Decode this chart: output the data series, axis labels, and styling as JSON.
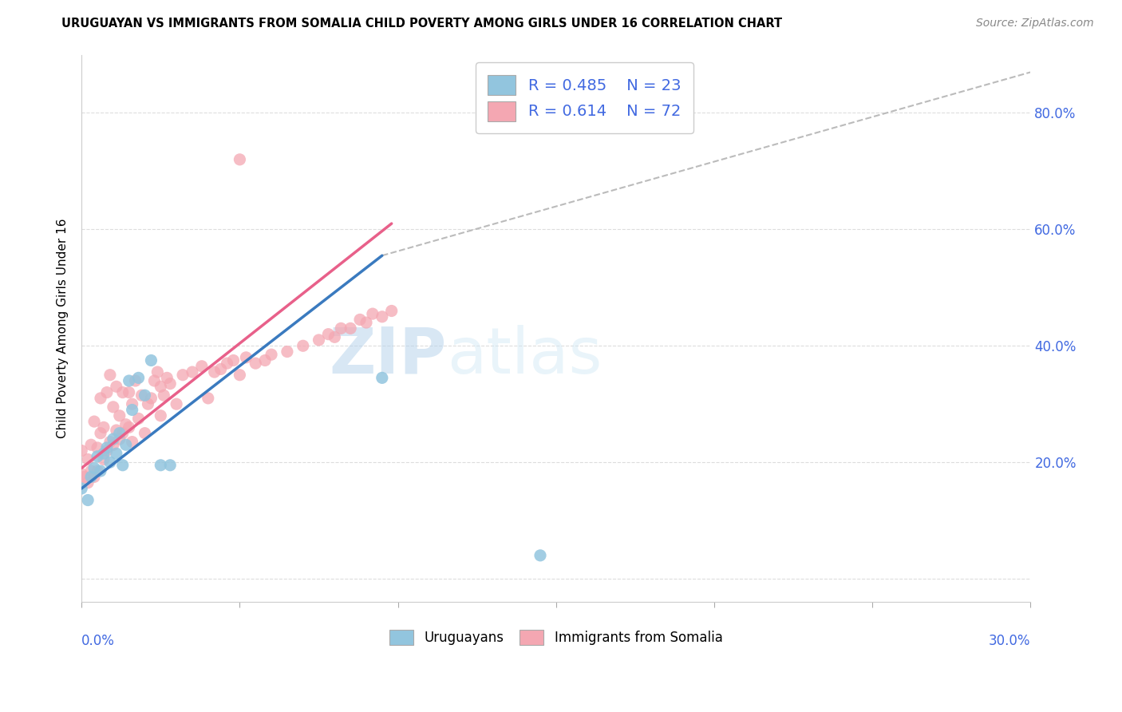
{
  "title": "URUGUAYAN VS IMMIGRANTS FROM SOMALIA CHILD POVERTY AMONG GIRLS UNDER 16 CORRELATION CHART",
  "source": "Source: ZipAtlas.com",
  "ylabel": "Child Poverty Among Girls Under 16",
  "ylabel_right_ticks": [
    "20.0%",
    "40.0%",
    "60.0%",
    "80.0%"
  ],
  "ylabel_right_vals": [
    0.2,
    0.4,
    0.6,
    0.8
  ],
  "blue_color": "#92c5de",
  "pink_color": "#f4a7b2",
  "trend_blue": "#3a7abf",
  "trend_pink": "#e8608a",
  "trend_gray": "#bbbbbb",
  "watermark_text": "ZIPatlas",
  "xmin": 0.0,
  "xmax": 0.3,
  "ymin": -0.04,
  "ymax": 0.9,
  "uruguayan_x": [
    0.0,
    0.002,
    0.003,
    0.004,
    0.005,
    0.006,
    0.007,
    0.008,
    0.009,
    0.01,
    0.011,
    0.012,
    0.013,
    0.014,
    0.015,
    0.016,
    0.018,
    0.02,
    0.022,
    0.025,
    0.028,
    0.095,
    0.145
  ],
  "uruguayan_y": [
    0.155,
    0.135,
    0.175,
    0.19,
    0.21,
    0.185,
    0.215,
    0.225,
    0.2,
    0.24,
    0.215,
    0.25,
    0.195,
    0.23,
    0.34,
    0.29,
    0.345,
    0.315,
    0.375,
    0.195,
    0.195,
    0.345,
    0.04
  ],
  "somalia_x": [
    0.0,
    0.0,
    0.001,
    0.002,
    0.002,
    0.003,
    0.003,
    0.004,
    0.004,
    0.005,
    0.005,
    0.006,
    0.006,
    0.007,
    0.007,
    0.008,
    0.008,
    0.009,
    0.009,
    0.01,
    0.01,
    0.011,
    0.011,
    0.012,
    0.012,
    0.013,
    0.013,
    0.014,
    0.015,
    0.015,
    0.016,
    0.016,
    0.017,
    0.018,
    0.019,
    0.02,
    0.021,
    0.022,
    0.023,
    0.024,
    0.025,
    0.025,
    0.026,
    0.027,
    0.028,
    0.03,
    0.032,
    0.035,
    0.038,
    0.04,
    0.042,
    0.044,
    0.046,
    0.048,
    0.05,
    0.052,
    0.055,
    0.058,
    0.06,
    0.065,
    0.07,
    0.075,
    0.078,
    0.08,
    0.082,
    0.085,
    0.088,
    0.09,
    0.092,
    0.095,
    0.098,
    0.05
  ],
  "somalia_y": [
    0.18,
    0.22,
    0.175,
    0.165,
    0.205,
    0.185,
    0.23,
    0.175,
    0.27,
    0.185,
    0.225,
    0.25,
    0.31,
    0.205,
    0.26,
    0.22,
    0.32,
    0.235,
    0.35,
    0.23,
    0.295,
    0.255,
    0.33,
    0.24,
    0.28,
    0.25,
    0.32,
    0.265,
    0.26,
    0.32,
    0.235,
    0.3,
    0.34,
    0.275,
    0.315,
    0.25,
    0.3,
    0.31,
    0.34,
    0.355,
    0.28,
    0.33,
    0.315,
    0.345,
    0.335,
    0.3,
    0.35,
    0.355,
    0.365,
    0.31,
    0.355,
    0.36,
    0.37,
    0.375,
    0.35,
    0.38,
    0.37,
    0.375,
    0.385,
    0.39,
    0.4,
    0.41,
    0.42,
    0.415,
    0.43,
    0.43,
    0.445,
    0.44,
    0.455,
    0.45,
    0.46,
    0.72
  ],
  "blue_trendline_x": [
    0.0,
    0.095
  ],
  "blue_trendline_y": [
    0.155,
    0.555
  ],
  "pink_trendline_x": [
    0.0,
    0.098
  ],
  "pink_trendline_y": [
    0.19,
    0.61
  ],
  "gray_trendline_x": [
    0.095,
    0.3
  ],
  "gray_trendline_y": [
    0.555,
    0.87
  ]
}
